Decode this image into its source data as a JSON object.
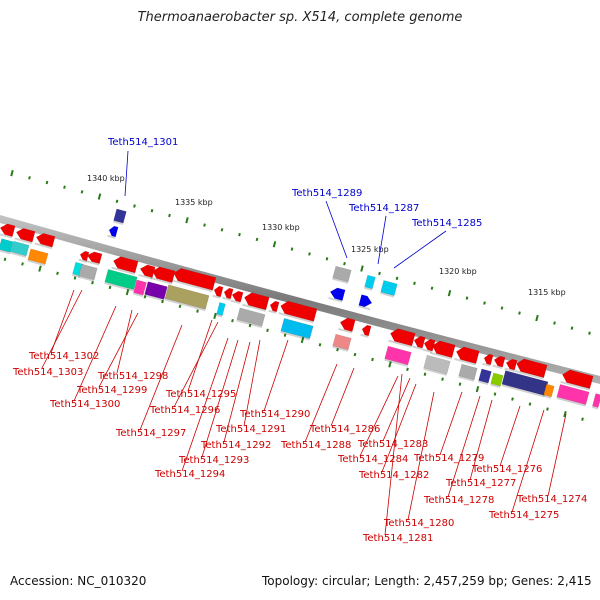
{
  "title": "Thermoanaerobacter sp. X514, complete genome",
  "footer": {
    "accession": "Accession: NC_010320",
    "topology": "Topology: circular; Length: 2,457,259 bp; Genes: 2,415"
  },
  "scale_labels": [
    "1340 kbp",
    "1335 kbp",
    "1330 kbp",
    "1325 kbp",
    "1320 kbp",
    "1315 kbp"
  ],
  "colors": {
    "label_top": "#0000cc",
    "label_bottom": "#cc0000",
    "backbone": "#8a8a8a",
    "tick": "#2a7a1a"
  },
  "genes_top": [
    {
      "name": "Teth514_1301"
    },
    {
      "name": "Teth514_1289"
    },
    {
      "name": "Teth514_1287"
    },
    {
      "name": "Teth514_1285"
    }
  ],
  "genes_bottom": [
    {
      "name": "Teth514_1302"
    },
    {
      "name": "Teth514_1303"
    },
    {
      "name": "Teth514_1298"
    },
    {
      "name": "Teth514_1299"
    },
    {
      "name": "Teth514_1300"
    },
    {
      "name": "Teth514_1295"
    },
    {
      "name": "Teth514_1296"
    },
    {
      "name": "Teth514_1297"
    },
    {
      "name": "Teth514_1291"
    },
    {
      "name": "Teth514_1290"
    },
    {
      "name": "Teth514_1292"
    },
    {
      "name": "Teth514_1293"
    },
    {
      "name": "Teth514_1294"
    },
    {
      "name": "Teth514_1286"
    },
    {
      "name": "Teth514_1288"
    },
    {
      "name": "Teth514_1283"
    },
    {
      "name": "Teth514_1284"
    },
    {
      "name": "Teth514_1282"
    },
    {
      "name": "Teth514_1279"
    },
    {
      "name": "Teth514_1276"
    },
    {
      "name": "Teth514_1277"
    },
    {
      "name": "Teth514_1278"
    },
    {
      "name": "Teth514_1274"
    },
    {
      "name": "Teth514_1275"
    },
    {
      "name": "Teth514_1280"
    },
    {
      "name": "Teth514_1281"
    }
  ]
}
